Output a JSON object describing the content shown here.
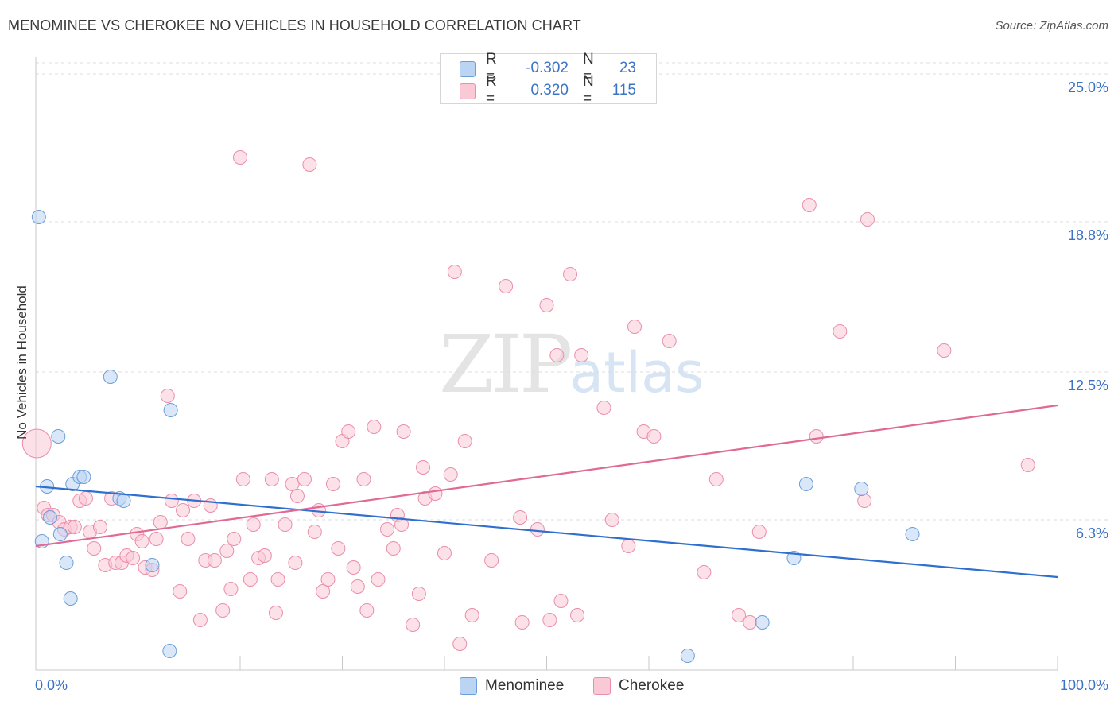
{
  "header": {
    "title": "MENOMINEE VS CHEROKEE NO VEHICLES IN HOUSEHOLD CORRELATION CHART",
    "source": "Source: ZipAtlas.com"
  },
  "watermark": {
    "zip": "ZIP",
    "atlas": "atlas"
  },
  "legend_top": {
    "rows": [
      {
        "r_label": "R =",
        "r_value": "-0.302",
        "n_label": "N =",
        "n_value": "23",
        "color": "#a8c8f0"
      },
      {
        "r_label": "R =",
        "r_value": "0.320",
        "n_label": "N =",
        "n_value": "115",
        "color": "#f7b8c8"
      }
    ]
  },
  "colors": {
    "menominee_fill": "#bcd4f4",
    "menominee_stroke": "#6b9fd9",
    "menominee_line": "#2f6fcf",
    "cherokee_fill": "#f9c9d6",
    "cherokee_stroke": "#ea8eaa",
    "cherokee_line": "#e06a94",
    "tick_label": "#3b73c4"
  },
  "chart_data": {
    "type": "scatter",
    "title": "MENOMINEE VS CHEROKEE NO VEHICLES IN HOUSEHOLD CORRELATION CHART",
    "xlabel": "",
    "ylabel": "No Vehicles in Household",
    "xlim": [
      0,
      100
    ],
    "ylim": [
      0,
      25.7
    ],
    "x_tick_labels": [
      "0.0%",
      "100.0%"
    ],
    "y_ticks": [
      6.3,
      12.5,
      18.8,
      25.0
    ],
    "y_tick_labels": [
      "6.3%",
      "12.5%",
      "18.8%",
      "25.0%"
    ],
    "grid": "horizontal dashed",
    "legend_position": "bottom-center",
    "series": [
      {
        "name": "Menominee",
        "trend": {
          "x": [
            0,
            100
          ],
          "y": [
            7.7,
            3.9
          ]
        },
        "points": [
          [
            0.3,
            19.0,
            1
          ],
          [
            1.1,
            7.7,
            1
          ],
          [
            1.4,
            6.4,
            1
          ],
          [
            0.6,
            5.4,
            1
          ],
          [
            2.2,
            9.8,
            1
          ],
          [
            2.4,
            5.7,
            1
          ],
          [
            3.0,
            4.5,
            1
          ],
          [
            3.4,
            3.0,
            1
          ],
          [
            3.6,
            7.8,
            1
          ],
          [
            4.3,
            8.1,
            1
          ],
          [
            4.7,
            8.1,
            1
          ],
          [
            7.3,
            12.3,
            1
          ],
          [
            8.2,
            7.2,
            1
          ],
          [
            8.6,
            7.1,
            1
          ],
          [
            11.4,
            4.4,
            1
          ],
          [
            13.1,
            0.8,
            1
          ],
          [
            13.2,
            10.9,
            1
          ],
          [
            63.8,
            0.6,
            1
          ],
          [
            71.1,
            2.0,
            1
          ],
          [
            74.2,
            4.7,
            1
          ],
          [
            75.4,
            7.8,
            1
          ],
          [
            80.8,
            7.6,
            1
          ],
          [
            85.8,
            5.7,
            1
          ]
        ]
      },
      {
        "name": "Cherokee",
        "trend": {
          "x": [
            0,
            100
          ],
          "y": [
            5.2,
            11.1
          ]
        },
        "points": [
          [
            0.1,
            9.5,
            2
          ],
          [
            0.8,
            6.8,
            1
          ],
          [
            1.2,
            6.5,
            1
          ],
          [
            1.7,
            6.5,
            1
          ],
          [
            2.3,
            6.2,
            1
          ],
          [
            2.8,
            5.9,
            1
          ],
          [
            3.4,
            6.0,
            1
          ],
          [
            3.8,
            6.0,
            1
          ],
          [
            4.3,
            7.1,
            1
          ],
          [
            4.9,
            7.2,
            1
          ],
          [
            5.3,
            5.8,
            1
          ],
          [
            5.7,
            5.1,
            1
          ],
          [
            6.3,
            6.0,
            1
          ],
          [
            6.8,
            4.4,
            1
          ],
          [
            7.4,
            7.2,
            1
          ],
          [
            7.8,
            4.5,
            1
          ],
          [
            8.4,
            4.5,
            1
          ],
          [
            8.9,
            4.8,
            1
          ],
          [
            9.5,
            4.7,
            1
          ],
          [
            9.9,
            5.7,
            1
          ],
          [
            10.4,
            5.4,
            1
          ],
          [
            10.7,
            4.3,
            1
          ],
          [
            11.4,
            4.2,
            1
          ],
          [
            11.8,
            5.5,
            1
          ],
          [
            12.2,
            6.2,
            1
          ],
          [
            12.9,
            11.5,
            1
          ],
          [
            13.3,
            7.1,
            1
          ],
          [
            14.1,
            3.3,
            1
          ],
          [
            14.4,
            6.7,
            1
          ],
          [
            14.9,
            5.5,
            1
          ],
          [
            15.5,
            7.1,
            1
          ],
          [
            16.1,
            2.1,
            1
          ],
          [
            16.6,
            4.6,
            1
          ],
          [
            17.1,
            6.9,
            1
          ],
          [
            17.5,
            4.6,
            1
          ],
          [
            18.3,
            2.5,
            1
          ],
          [
            18.7,
            5.0,
            1
          ],
          [
            19.1,
            3.4,
            1
          ],
          [
            19.4,
            5.5,
            1
          ],
          [
            20.0,
            21.5,
            1
          ],
          [
            20.3,
            8.0,
            1
          ],
          [
            21.0,
            3.8,
            1
          ],
          [
            21.3,
            6.1,
            1
          ],
          [
            21.8,
            4.7,
            1
          ],
          [
            22.4,
            4.8,
            1
          ],
          [
            23.1,
            8.0,
            1
          ],
          [
            23.5,
            2.4,
            1
          ],
          [
            23.7,
            3.8,
            1
          ],
          [
            24.4,
            6.1,
            1
          ],
          [
            25.1,
            7.8,
            1
          ],
          [
            25.4,
            4.5,
            1
          ],
          [
            25.6,
            7.3,
            1
          ],
          [
            26.3,
            8.0,
            1
          ],
          [
            26.8,
            21.2,
            1
          ],
          [
            27.3,
            5.8,
            1
          ],
          [
            27.7,
            6.7,
            1
          ],
          [
            28.1,
            3.3,
            1
          ],
          [
            28.6,
            3.8,
            1
          ],
          [
            29.1,
            7.8,
            1
          ],
          [
            29.6,
            5.1,
            1
          ],
          [
            30.0,
            9.6,
            1
          ],
          [
            30.6,
            10.0,
            1
          ],
          [
            31.1,
            4.3,
            1
          ],
          [
            31.5,
            3.5,
            1
          ],
          [
            32.1,
            8.0,
            1
          ],
          [
            32.4,
            2.5,
            1
          ],
          [
            33.1,
            10.2,
            1
          ],
          [
            33.5,
            3.8,
            1
          ],
          [
            34.4,
            5.9,
            1
          ],
          [
            35.0,
            5.1,
            1
          ],
          [
            35.4,
            6.5,
            1
          ],
          [
            35.8,
            6.1,
            1
          ],
          [
            36.0,
            10.0,
            1
          ],
          [
            36.9,
            1.9,
            1
          ],
          [
            37.5,
            3.2,
            1
          ],
          [
            37.9,
            8.5,
            1
          ],
          [
            38.1,
            7.2,
            1
          ],
          [
            39.1,
            7.4,
            1
          ],
          [
            40.0,
            4.9,
            1
          ],
          [
            40.6,
            8.2,
            1
          ],
          [
            41.0,
            16.7,
            1
          ],
          [
            41.5,
            1.1,
            1
          ],
          [
            42.0,
            9.6,
            1
          ],
          [
            42.7,
            2.3,
            1
          ],
          [
            44.6,
            4.6,
            1
          ],
          [
            46.0,
            16.1,
            1
          ],
          [
            47.4,
            6.4,
            1
          ],
          [
            47.6,
            2.0,
            1
          ],
          [
            49.1,
            5.9,
            1
          ],
          [
            50.0,
            15.3,
            1
          ],
          [
            50.3,
            2.1,
            1
          ],
          [
            51.0,
            13.2,
            1
          ],
          [
            51.4,
            2.9,
            1
          ],
          [
            52.3,
            16.6,
            1
          ],
          [
            53.0,
            2.3,
            1
          ],
          [
            53.4,
            13.2,
            1
          ],
          [
            55.6,
            11.0,
            1
          ],
          [
            56.4,
            6.3,
            1
          ],
          [
            58.0,
            5.2,
            1
          ],
          [
            58.6,
            14.4,
            1
          ],
          [
            59.5,
            10.0,
            1
          ],
          [
            60.5,
            9.8,
            1
          ],
          [
            62.0,
            13.8,
            1
          ],
          [
            65.4,
            4.1,
            1
          ],
          [
            66.6,
            8.0,
            1
          ],
          [
            68.8,
            2.3,
            1
          ],
          [
            69.9,
            2.0,
            1
          ],
          [
            70.8,
            5.8,
            1
          ],
          [
            75.7,
            19.5,
            1
          ],
          [
            76.4,
            9.8,
            1
          ],
          [
            78.7,
            14.2,
            1
          ],
          [
            81.1,
            7.1,
            1
          ],
          [
            81.4,
            18.9,
            1
          ],
          [
            88.9,
            13.4,
            1
          ],
          [
            97.1,
            8.6,
            1
          ]
        ]
      }
    ]
  },
  "bottom_legend": {
    "items": [
      {
        "label": "Menominee"
      },
      {
        "label": "Cherokee"
      }
    ]
  }
}
